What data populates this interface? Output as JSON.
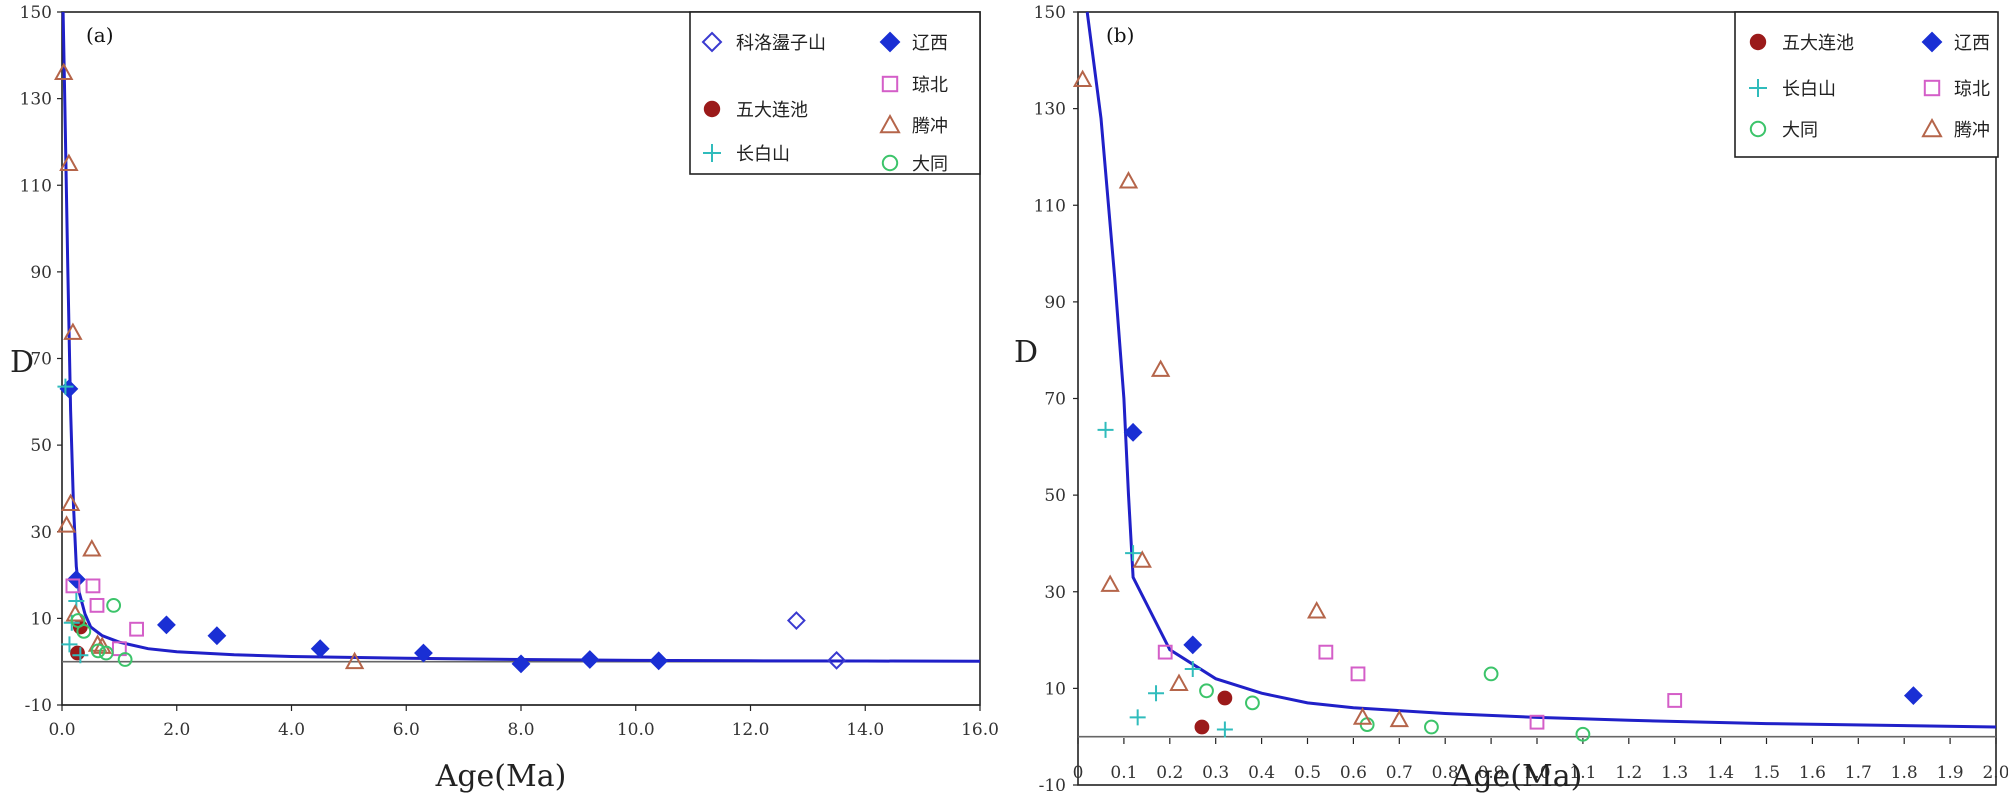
{
  "colors": {
    "curve": "#2020c8",
    "zero_line": "#666666",
    "科洛盪子山": "#3a3ad0",
    "辽西": "#1a2fd4",
    "五大连池": "#9b1a1a",
    "琼北": "#d45ec8",
    "长白山": "#30bcbc",
    "腾冲": "#b5654a",
    "大同": "#3cc46a"
  },
  "icons": {
    "科洛盪子山": "diamond-open",
    "辽西": "diamond-filled",
    "五大连池": "circle-filled",
    "琼北": "square-open",
    "长白山": "plus",
    "腾冲": "triangle-open",
    "大同": "circle-open"
  },
  "chart_data": [
    {
      "type": "scatter",
      "panel": "(a)",
      "xlabel": "Age(Ma)",
      "ylabel": "D",
      "xlim": [
        0,
        16
      ],
      "ylim": [
        -10,
        150
      ],
      "x_ticks": [
        "0.0",
        "2.0",
        "4.0",
        "6.0",
        "8.0",
        "10.0",
        "12.0",
        "14.0",
        "16.0"
      ],
      "y_ticks": [
        "-10",
        "10",
        "30",
        "50",
        "70",
        "90",
        "110",
        "130",
        "150"
      ],
      "legend": [
        "科洛盪子山",
        "辽西",
        "五大连池",
        "琼北",
        "腾冲",
        "长白山",
        "大同"
      ],
      "curve": [
        [
          0.02,
          150
        ],
        [
          0.05,
          128
        ],
        [
          0.1,
          92
        ],
        [
          0.15,
          58
        ],
        [
          0.2,
          36
        ],
        [
          0.25,
          22
        ],
        [
          0.3,
          16
        ],
        [
          0.4,
          11
        ],
        [
          0.5,
          8
        ],
        [
          0.7,
          6
        ],
        [
          1.0,
          4.5
        ],
        [
          1.5,
          3
        ],
        [
          2,
          2.3
        ],
        [
          3,
          1.6
        ],
        [
          4,
          1.2
        ],
        [
          6,
          0.8
        ],
        [
          8,
          0.5
        ],
        [
          10,
          0.3
        ],
        [
          12,
          0.2
        ],
        [
          14,
          0.15
        ],
        [
          16,
          0.1
        ]
      ],
      "series": [
        {
          "name": "科洛盪子山",
          "points": [
            [
              12.8,
              9.5
            ],
            [
              13.5,
              0.3
            ]
          ]
        },
        {
          "name": "辽西",
          "points": [
            [
              0.12,
              63
            ],
            [
              0.25,
              19
            ],
            [
              1.82,
              8.5
            ],
            [
              2.7,
              6
            ],
            [
              4.5,
              3
            ],
            [
              6.3,
              2
            ],
            [
              8.0,
              -0.5
            ],
            [
              9.2,
              0.5
            ],
            [
              10.4,
              0.2
            ]
          ]
        },
        {
          "name": "五大连池",
          "points": [
            [
              0.27,
              2
            ],
            [
              0.32,
              8
            ]
          ]
        },
        {
          "name": "琼北",
          "points": [
            [
              0.19,
              17.5
            ],
            [
              0.54,
              17.5
            ],
            [
              0.61,
              13
            ],
            [
              1.0,
              3
            ],
            [
              1.3,
              7.5
            ]
          ]
        },
        {
          "name": "长白山",
          "points": [
            [
              0.06,
              63.5
            ],
            [
              0.13,
              4
            ],
            [
              0.17,
              9
            ],
            [
              0.25,
              14
            ],
            [
              0.32,
              1.5
            ]
          ]
        },
        {
          "name": "腾冲",
          "points": [
            [
              0.03,
              136
            ],
            [
              0.08,
              31.5
            ],
            [
              0.12,
              115
            ],
            [
              0.15,
              36.5
            ],
            [
              0.19,
              76
            ],
            [
              0.23,
              11
            ],
            [
              0.52,
              26
            ],
            [
              0.62,
              4
            ],
            [
              0.7,
              3.5
            ],
            [
              5.1,
              0
            ]
          ]
        },
        {
          "name": "大同",
          "points": [
            [
              0.28,
              9.5
            ],
            [
              0.38,
              7
            ],
            [
              0.63,
              2.5
            ],
            [
              0.77,
              2
            ],
            [
              0.9,
              13
            ],
            [
              1.1,
              0.5
            ]
          ]
        }
      ]
    },
    {
      "type": "scatter",
      "panel": "(b)",
      "xlabel": "Age(Ma)",
      "ylabel": "D",
      "xlim": [
        0,
        2.0
      ],
      "ylim": [
        -10,
        150
      ],
      "x_ticks": [
        "0",
        "0.1",
        "0.2",
        "0.3",
        "0.4",
        "0.5",
        "0.6",
        "0.7",
        "0.8",
        "0.9",
        "1.0",
        "1.1",
        "1.2",
        "1.3",
        "1.4",
        "1.5",
        "1.6",
        "1.7",
        "1.8",
        "1.9",
        "2.0"
      ],
      "y_ticks": [
        "-10",
        "10",
        "30",
        "50",
        "70",
        "90",
        "110",
        "130",
        "150"
      ],
      "legend": [
        "五大连池",
        "辽西",
        "长白山",
        "琼北",
        "大同",
        "腾冲"
      ],
      "curve": [
        [
          0.02,
          150
        ],
        [
          0.05,
          128
        ],
        [
          0.08,
          95
        ],
        [
          0.1,
          70
        ],
        [
          0.11,
          50
        ],
        [
          0.12,
          33
        ],
        [
          0.2,
          18
        ],
        [
          0.3,
          12
        ],
        [
          0.4,
          9
        ],
        [
          0.5,
          7
        ],
        [
          0.6,
          6
        ],
        [
          0.8,
          4.8
        ],
        [
          1.0,
          4
        ],
        [
          1.2,
          3.4
        ],
        [
          1.5,
          2.7
        ],
        [
          2.0,
          2
        ]
      ],
      "series": [
        {
          "name": "五大连池",
          "points": [
            [
              0.27,
              2
            ],
            [
              0.32,
              8
            ]
          ]
        },
        {
          "name": "辽西",
          "points": [
            [
              0.12,
              63
            ],
            [
              0.25,
              19
            ],
            [
              1.82,
              8.5
            ]
          ]
        },
        {
          "name": "长白山",
          "points": [
            [
              0.06,
              63.5
            ],
            [
              0.12,
              38
            ],
            [
              0.13,
              4
            ],
            [
              0.17,
              9
            ],
            [
              0.25,
              14
            ],
            [
              0.32,
              1.5
            ]
          ]
        },
        {
          "name": "琼北",
          "points": [
            [
              0.19,
              17.5
            ],
            [
              0.54,
              17.5
            ],
            [
              0.61,
              13
            ],
            [
              1.0,
              3
            ],
            [
              1.3,
              7.5
            ]
          ]
        },
        {
          "name": "大同",
          "points": [
            [
              0.28,
              9.5
            ],
            [
              0.38,
              7
            ],
            [
              0.63,
              2.5
            ],
            [
              0.77,
              2
            ],
            [
              0.9,
              13
            ],
            [
              1.1,
              0.5
            ]
          ]
        },
        {
          "name": "腾冲",
          "points": [
            [
              0.01,
              136
            ],
            [
              0.07,
              31.5
            ],
            [
              0.11,
              115
            ],
            [
              0.14,
              36.5
            ],
            [
              0.18,
              76
            ],
            [
              0.22,
              11
            ],
            [
              0.52,
              26
            ],
            [
              0.62,
              4
            ],
            [
              0.7,
              3.5
            ]
          ]
        }
      ]
    }
  ]
}
